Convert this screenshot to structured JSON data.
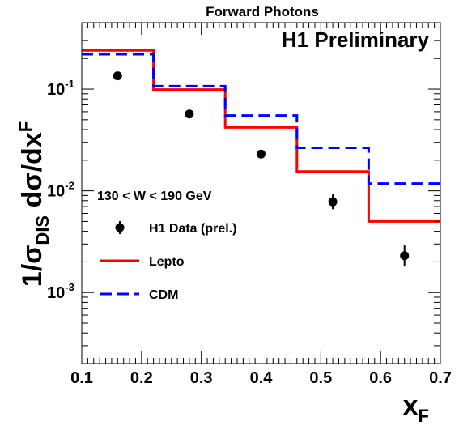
{
  "chart_data": {
    "type": "line",
    "title": "Forward Photons",
    "annotation": "H1 Preliminary",
    "condition_label": "130 < W < 190 GeV",
    "xlabel": "x",
    "xlabel_sub": "F",
    "ylabel": {
      "main": "1/σ",
      "main_sub": "DIS",
      "rest": " dσ/dx",
      "rest_sub": "F"
    },
    "xlim": [
      0.1,
      0.7
    ],
    "ylim": [
      0.0002,
      0.45
    ],
    "yscale": "log",
    "grid": false,
    "legend_position": "bottom-left",
    "x_ticks": [
      "0.1",
      "0.2",
      "0.3",
      "0.4",
      "0.5",
      "0.6",
      "0.7"
    ],
    "y_ticks": [
      {
        "base": "10",
        "exp": "-3",
        "value": 0.001
      },
      {
        "base": "10",
        "exp": "-2",
        "value": 0.01
      },
      {
        "base": "10",
        "exp": "-1",
        "value": 0.1
      }
    ],
    "bin_edges": [
      0.1,
      0.22,
      0.34,
      0.46,
      0.58,
      0.7
    ],
    "series": [
      {
        "name": "H1 Data (prel.)",
        "kind": "points",
        "color": "#000000",
        "x": [
          0.16,
          0.28,
          0.4,
          0.52,
          0.64
        ],
        "y": [
          0.135,
          0.057,
          0.023,
          0.0078,
          0.0023
        ],
        "err_low": [
          0.127,
          0.054,
          0.021,
          0.0066,
          0.0018
        ],
        "err_high": [
          0.143,
          0.06,
          0.025,
          0.0092,
          0.0029
        ]
      },
      {
        "name": "Lepto",
        "kind": "step",
        "color": "#ff0000",
        "dashed": false,
        "values": [
          0.24,
          0.099,
          0.042,
          0.0155,
          0.005
        ]
      },
      {
        "name": "CDM",
        "kind": "step",
        "color": "#0000ff",
        "dashed": true,
        "values": [
          0.22,
          0.107,
          0.055,
          0.0265,
          0.0118
        ]
      }
    ]
  }
}
